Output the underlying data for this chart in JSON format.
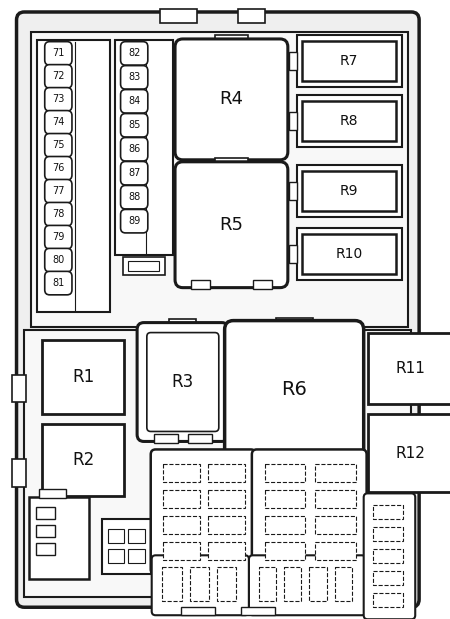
{
  "bg_color": "#ffffff",
  "lc": "#1a1a1a",
  "fig_width": 4.5,
  "fig_height": 6.19,
  "fuse_numbers_left": [
    "71",
    "72",
    "73",
    "74",
    "75",
    "76",
    "77",
    "78",
    "79",
    "80",
    "81"
  ],
  "fuse_numbers_right": [
    "82",
    "83",
    "84",
    "85",
    "86",
    "87",
    "88",
    "89"
  ]
}
